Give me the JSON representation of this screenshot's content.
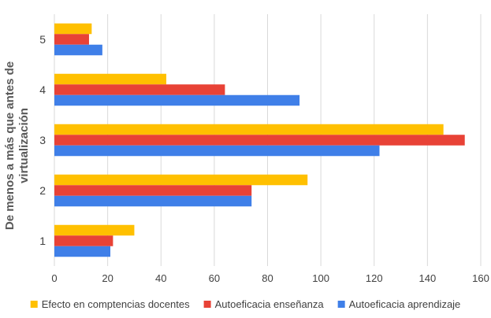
{
  "chart_data": {
    "type": "bar",
    "orientation": "horizontal",
    "categories": [
      "1",
      "2",
      "3",
      "4",
      "5"
    ],
    "series": [
      {
        "name": "Efecto en comptencias docentes",
        "color": "#FFC000",
        "values": [
          30,
          95,
          146,
          42,
          14
        ]
      },
      {
        "name": "Autoeficacia enseñanza",
        "color": "#E84236",
        "values": [
          22,
          74,
          154,
          64,
          13
        ]
      },
      {
        "name": "Autoeficacia aprendizaje",
        "color": "#3F7FE8",
        "values": [
          21,
          74,
          122,
          92,
          18
        ]
      }
    ],
    "ylabel_lines": [
      "De menos a más que antes de",
      "virtualización"
    ],
    "xlim": [
      0,
      160
    ],
    "xticks": [
      0,
      20,
      40,
      60,
      80,
      100,
      120,
      140,
      160
    ],
    "grid": true,
    "legend_position": "bottom"
  }
}
